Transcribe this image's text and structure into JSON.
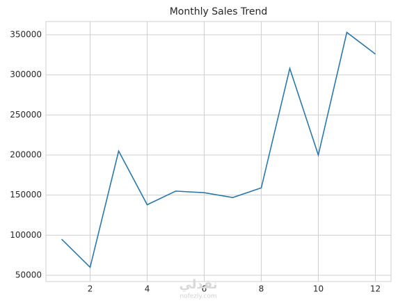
{
  "chart_data": {
    "type": "line",
    "title": "Monthly Sales Trend",
    "x": [
      1,
      2,
      3,
      4,
      5,
      6,
      7,
      8,
      9,
      10,
      11,
      12
    ],
    "series": [
      {
        "name": "Sales",
        "color": "#2a78ab",
        "values": [
          95000,
          60000,
          205000,
          138000,
          155000,
          153000,
          147000,
          159000,
          308000,
          200000,
          353000,
          326000
        ]
      }
    ],
    "xlim": [
      0.45,
      12.55
    ],
    "xticks": [
      2,
      4,
      6,
      8,
      10,
      12
    ],
    "ylim": [
      42200,
      366500
    ],
    "yticks": [
      50000,
      100000,
      150000,
      200000,
      250000,
      300000,
      350000
    ],
    "grid": true,
    "watermark": [
      "نفذلي",
      "nofezly.com"
    ]
  }
}
